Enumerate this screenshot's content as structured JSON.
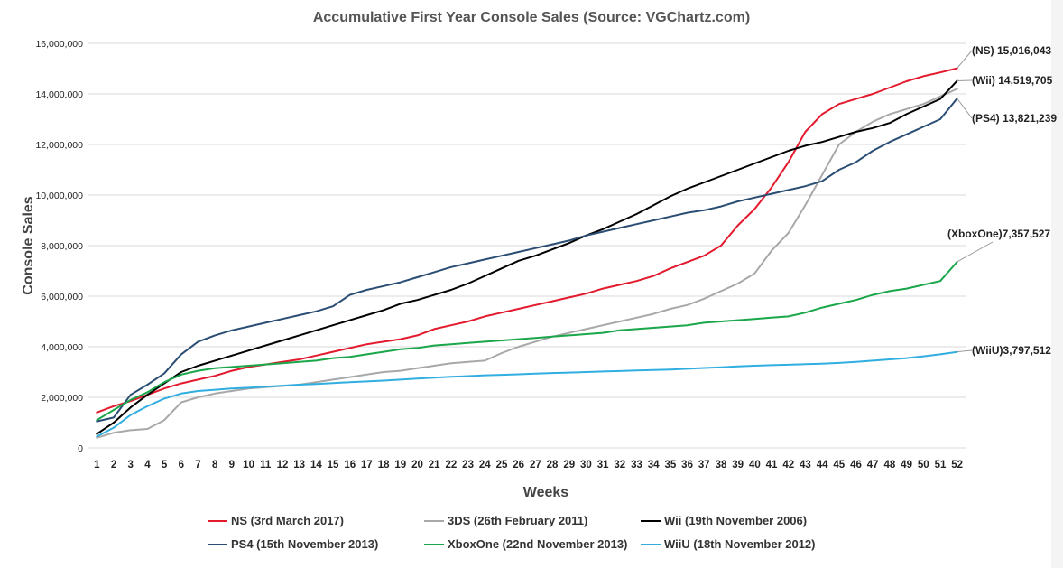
{
  "chart_data": {
    "type": "line",
    "title": "Accumulative First Year Console Sales (Source: VGChartz.com)",
    "xlabel": "Weeks",
    "ylabel": "Console Sales",
    "ylim": [
      0,
      16000000
    ],
    "yticks": [
      "0",
      "2,000,000",
      "4,000,000",
      "6,000,000",
      "8,000,000",
      "10,000,000",
      "12,000,000",
      "14,000,000",
      "16,000,000"
    ],
    "x": [
      1,
      2,
      3,
      4,
      5,
      6,
      7,
      8,
      9,
      10,
      11,
      12,
      13,
      14,
      15,
      16,
      17,
      18,
      19,
      20,
      21,
      22,
      23,
      24,
      25,
      26,
      27,
      28,
      29,
      30,
      31,
      32,
      33,
      34,
      35,
      36,
      37,
      38,
      39,
      40,
      41,
      42,
      43,
      44,
      45,
      46,
      47,
      48,
      49,
      50,
      51,
      52
    ],
    "grid": true,
    "legend_position": "bottom",
    "series": [
      {
        "name": "NS (3rd March 2017)",
        "color": "#e31a2d",
        "values": [
          1400000,
          1650000,
          1850000,
          2100000,
          2350000,
          2550000,
          2700000,
          2850000,
          3050000,
          3200000,
          3300000,
          3400000,
          3500000,
          3650000,
          3800000,
          3950000,
          4100000,
          4200000,
          4300000,
          4450000,
          4700000,
          4850000,
          5000000,
          5200000,
          5350000,
          5500000,
          5650000,
          5800000,
          5950000,
          6100000,
          6300000,
          6450000,
          6600000,
          6800000,
          7100000,
          7350000,
          7600000,
          8000000,
          8800000,
          9450000,
          10300000,
          11300000,
          12500000,
          13200000,
          13600000,
          13800000,
          14000000,
          14250000,
          14500000,
          14700000,
          14850000,
          15016043
        ],
        "annotation": "(NS) 15,016,043"
      },
      {
        "name": "3DS (26th February 2011)",
        "color": "#a8a8a8",
        "values": [
          400000,
          600000,
          700000,
          750000,
          1100000,
          1800000,
          2000000,
          2150000,
          2250000,
          2350000,
          2400000,
          2450000,
          2500000,
          2600000,
          2700000,
          2800000,
          2900000,
          3000000,
          3050000,
          3150000,
          3250000,
          3350000,
          3400000,
          3450000,
          3750000,
          4000000,
          4200000,
          4400000,
          4550000,
          4700000,
          4850000,
          5000000,
          5150000,
          5300000,
          5500000,
          5650000,
          5900000,
          6200000,
          6500000,
          6900000,
          7800000,
          8500000,
          9600000,
          10800000,
          12000000,
          12500000,
          12900000,
          13200000,
          13400000,
          13600000,
          13900000,
          14200000
        ]
      },
      {
        "name": "Wii (19th November 2006)",
        "color": "#000000",
        "values": [
          550000,
          1000000,
          1600000,
          2100000,
          2550000,
          3000000,
          3250000,
          3450000,
          3650000,
          3850000,
          4050000,
          4250000,
          4450000,
          4650000,
          4850000,
          5050000,
          5250000,
          5450000,
          5700000,
          5850000,
          6050000,
          6250000,
          6500000,
          6800000,
          7100000,
          7400000,
          7600000,
          7850000,
          8100000,
          8400000,
          8650000,
          8950000,
          9250000,
          9600000,
          9950000,
          10250000,
          10500000,
          10750000,
          11000000,
          11250000,
          11500000,
          11750000,
          11950000,
          12100000,
          12300000,
          12500000,
          12650000,
          12850000,
          13200000,
          13500000,
          13800000,
          14519705
        ],
        "annotation": "(Wii) 14,519,705"
      },
      {
        "name": "PS4 (15th November 2013)",
        "color": "#2a4d73",
        "values": [
          1050000,
          1200000,
          2100000,
          2500000,
          2950000,
          3700000,
          4200000,
          4450000,
          4650000,
          4800000,
          4950000,
          5100000,
          5250000,
          5400000,
          5600000,
          6050000,
          6250000,
          6400000,
          6550000,
          6750000,
          6950000,
          7150000,
          7300000,
          7450000,
          7600000,
          7750000,
          7900000,
          8050000,
          8200000,
          8400000,
          8550000,
          8700000,
          8850000,
          9000000,
          9150000,
          9300000,
          9400000,
          9550000,
          9750000,
          9900000,
          10050000,
          10200000,
          10350000,
          10550000,
          11000000,
          11300000,
          11750000,
          12100000,
          12400000,
          12700000,
          13000000,
          13821239
        ],
        "annotation": "(PS4) 13,821,239"
      },
      {
        "name": "XboxOne (22nd November 2013)",
        "color": "#1aa64a",
        "values": [
          1100000,
          1500000,
          1900000,
          2200000,
          2600000,
          2900000,
          3050000,
          3150000,
          3200000,
          3250000,
          3300000,
          3350000,
          3400000,
          3450000,
          3550000,
          3600000,
          3700000,
          3800000,
          3900000,
          3950000,
          4050000,
          4100000,
          4150000,
          4200000,
          4250000,
          4300000,
          4350000,
          4400000,
          4450000,
          4500000,
          4550000,
          4650000,
          4700000,
          4750000,
          4800000,
          4850000,
          4950000,
          5000000,
          5050000,
          5100000,
          5150000,
          5200000,
          5350000,
          5550000,
          5700000,
          5850000,
          6050000,
          6200000,
          6300000,
          6450000,
          6600000,
          7357527
        ],
        "annotation": "(XboxOne)7,357,527"
      },
      {
        "name": "WiiU (18th November 2012)",
        "color": "#30aee0",
        "values": [
          450000,
          800000,
          1300000,
          1650000,
          1950000,
          2150000,
          2250000,
          2300000,
          2350000,
          2380000,
          2420000,
          2460000,
          2500000,
          2530000,
          2560000,
          2600000,
          2630000,
          2660000,
          2700000,
          2740000,
          2780000,
          2810000,
          2840000,
          2870000,
          2890000,
          2910000,
          2940000,
          2960000,
          2980000,
          3000000,
          3020000,
          3040000,
          3060000,
          3080000,
          3100000,
          3130000,
          3160000,
          3190000,
          3220000,
          3250000,
          3270000,
          3290000,
          3310000,
          3330000,
          3360000,
          3400000,
          3450000,
          3500000,
          3550000,
          3620000,
          3700000,
          3797512
        ],
        "annotation": "(WiiU)3,797,512"
      }
    ]
  }
}
